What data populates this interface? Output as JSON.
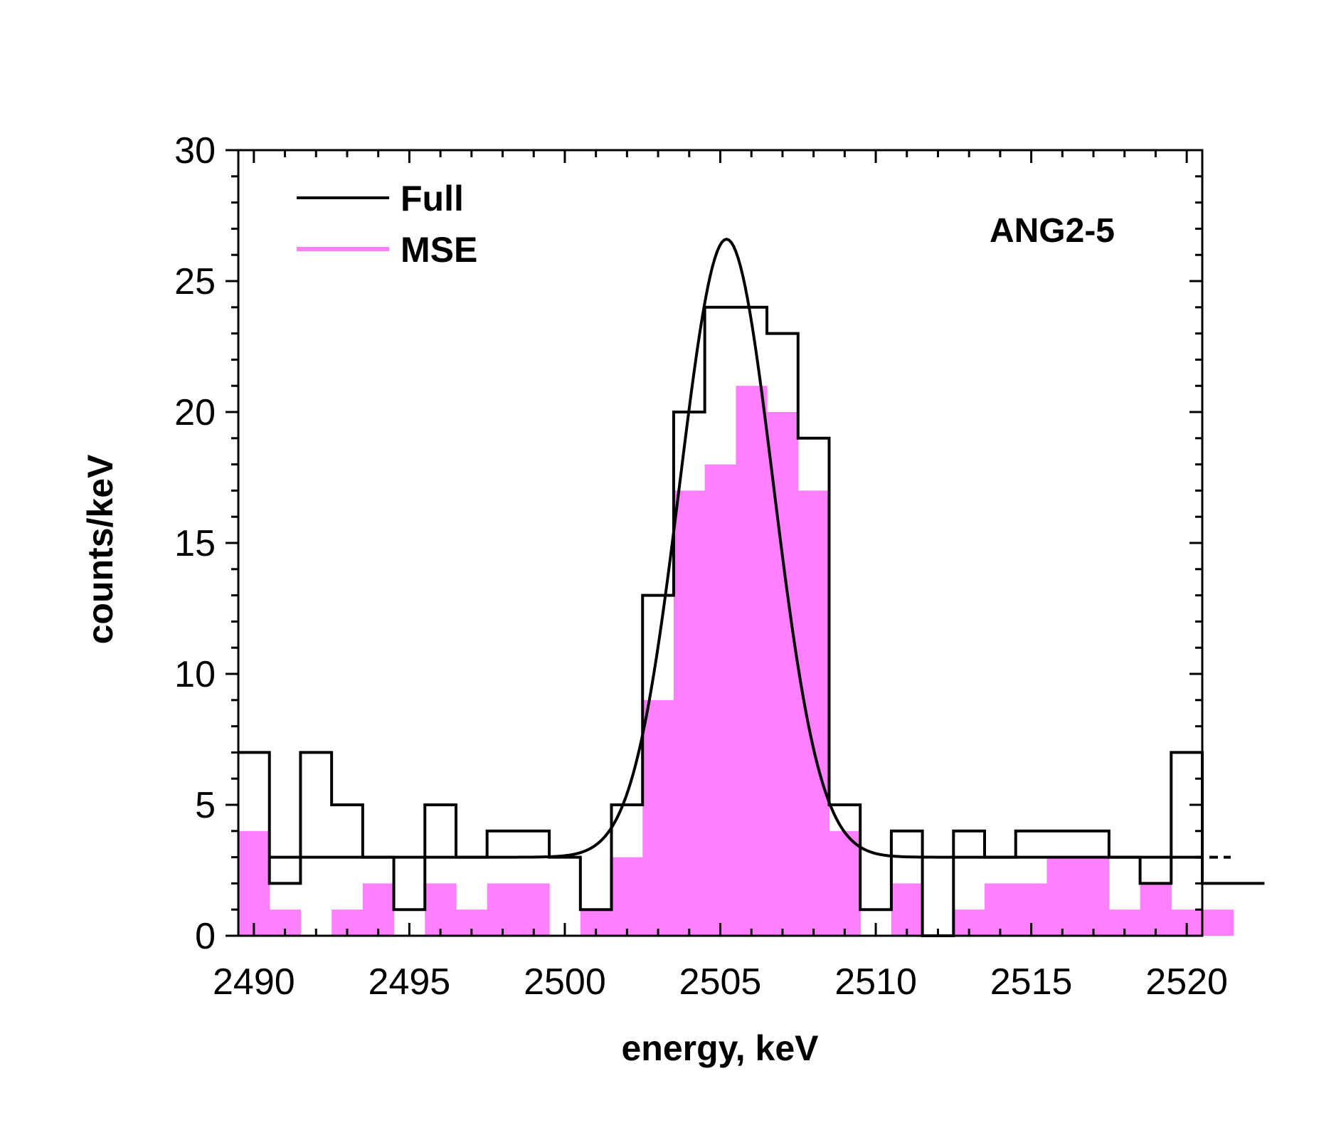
{
  "chart_data": {
    "type": "histogram",
    "title": "",
    "xlabel": "energy, keV",
    "ylabel": "counts/keV",
    "xlim": [
      2489.5,
      2520.5
    ],
    "ylim": [
      0,
      30
    ],
    "x_ticks": [
      2490,
      2495,
      2500,
      2505,
      2510,
      2515,
      2520
    ],
    "y_ticks": [
      0,
      5,
      10,
      15,
      20,
      25,
      30
    ],
    "bin_width": 1,
    "series": [
      {
        "name": "Full",
        "style": "step",
        "color": "#000000",
        "bin_edges_start": 2489.5,
        "values": [
          7,
          2,
          7,
          5,
          3,
          1,
          5,
          3,
          4,
          4,
          3,
          1,
          5,
          13,
          20,
          24,
          24,
          23,
          19,
          5,
          1,
          4,
          0,
          4,
          3,
          4,
          4,
          4,
          3,
          2,
          7,
          2,
          2
        ]
      },
      {
        "name": "MSE",
        "style": "filled",
        "color": "#ff80ff",
        "bin_edges_start": 2489.5,
        "values": [
          4,
          1,
          0,
          1,
          2,
          0,
          2,
          1,
          2,
          2,
          0,
          1,
          3,
          9,
          17,
          18,
          21,
          20,
          17,
          4,
          0,
          2,
          0,
          1,
          2,
          2,
          3,
          3,
          1,
          2,
          1,
          1
        ]
      },
      {
        "name": "fit",
        "style": "curve",
        "color": "#000000",
        "model": "gaussian_plus_constant",
        "baseline": 3.0,
        "amplitude": 23.6,
        "center": 2505.2,
        "sigma": 1.5,
        "x_range": [
          2490.5,
          2520.5
        ]
      }
    ],
    "legend": [
      {
        "label": "Full",
        "color": "#000000"
      },
      {
        "label": "MSE",
        "color": "#ff80ff"
      }
    ],
    "legend_position": "top-left",
    "annotation": "ANG2-5"
  }
}
